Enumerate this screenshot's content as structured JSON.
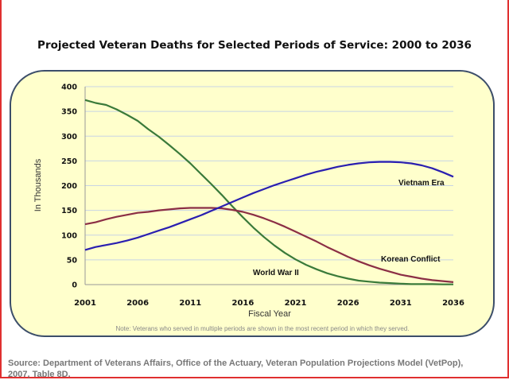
{
  "chart_data": {
    "type": "line",
    "title": "Projected Veteran Deaths for Selected Periods of Service: 2000 to 2036",
    "xlabel": "Fiscal Year",
    "ylabel": "In Thousands",
    "xlim": [
      2001,
      2036
    ],
    "ylim": [
      0,
      400
    ],
    "x_ticks": [
      "2001",
      "2006",
      "2011",
      "2016",
      "2021",
      "2026",
      "2031",
      "2036"
    ],
    "y_ticks": [
      "0",
      "50",
      "100",
      "150",
      "200",
      "250",
      "300",
      "350",
      "400"
    ],
    "grid": "horizontal",
    "x": [
      2001,
      2002,
      2003,
      2004,
      2005,
      2006,
      2007,
      2008,
      2009,
      2010,
      2011,
      2012,
      2013,
      2014,
      2015,
      2016,
      2017,
      2018,
      2019,
      2020,
      2021,
      2022,
      2023,
      2024,
      2025,
      2026,
      2027,
      2028,
      2029,
      2030,
      2031,
      2032,
      2033,
      2034,
      2035,
      2036
    ],
    "series": [
      {
        "name": "World War II",
        "color": "#3a7a3a",
        "values": [
          373,
          367,
          363,
          354,
          343,
          331,
          314,
          299,
          282,
          264,
          245,
          224,
          203,
          181,
          158,
          136,
          115,
          96,
          79,
          64,
          51,
          40,
          31,
          23,
          17,
          12,
          8,
          6,
          4,
          3,
          2,
          1,
          1,
          1,
          0.5,
          0.5
        ]
      },
      {
        "name": "Korean Conflict",
        "color": "#8b2e45",
        "values": [
          122,
          126,
          132,
          137,
          141,
          145,
          147,
          150,
          152,
          154,
          155,
          155,
          155,
          154,
          151,
          147,
          141,
          134,
          126,
          117,
          107,
          97,
          87,
          76,
          66,
          56,
          47,
          39,
          32,
          26,
          20,
          16,
          12,
          9,
          7,
          5
        ]
      },
      {
        "name": "Vietnam Era",
        "color": "#2a1fb0",
        "values": [
          70,
          76,
          80,
          84,
          89,
          95,
          102,
          109,
          116,
          124,
          132,
          140,
          149,
          158,
          167,
          176,
          185,
          193,
          201,
          208,
          215,
          222,
          228,
          233,
          238,
          242,
          245,
          247,
          248,
          248,
          247,
          245,
          241,
          235,
          227,
          218
        ]
      }
    ],
    "annotation": "Note: Veterans who served in multiple periods are shown in the most recent period in which they served."
  },
  "source": "Source: Department of Veterans Affairs, Office of the Actuary, Veteran Population Projections Model (VetPop), 2007, Table 8D."
}
